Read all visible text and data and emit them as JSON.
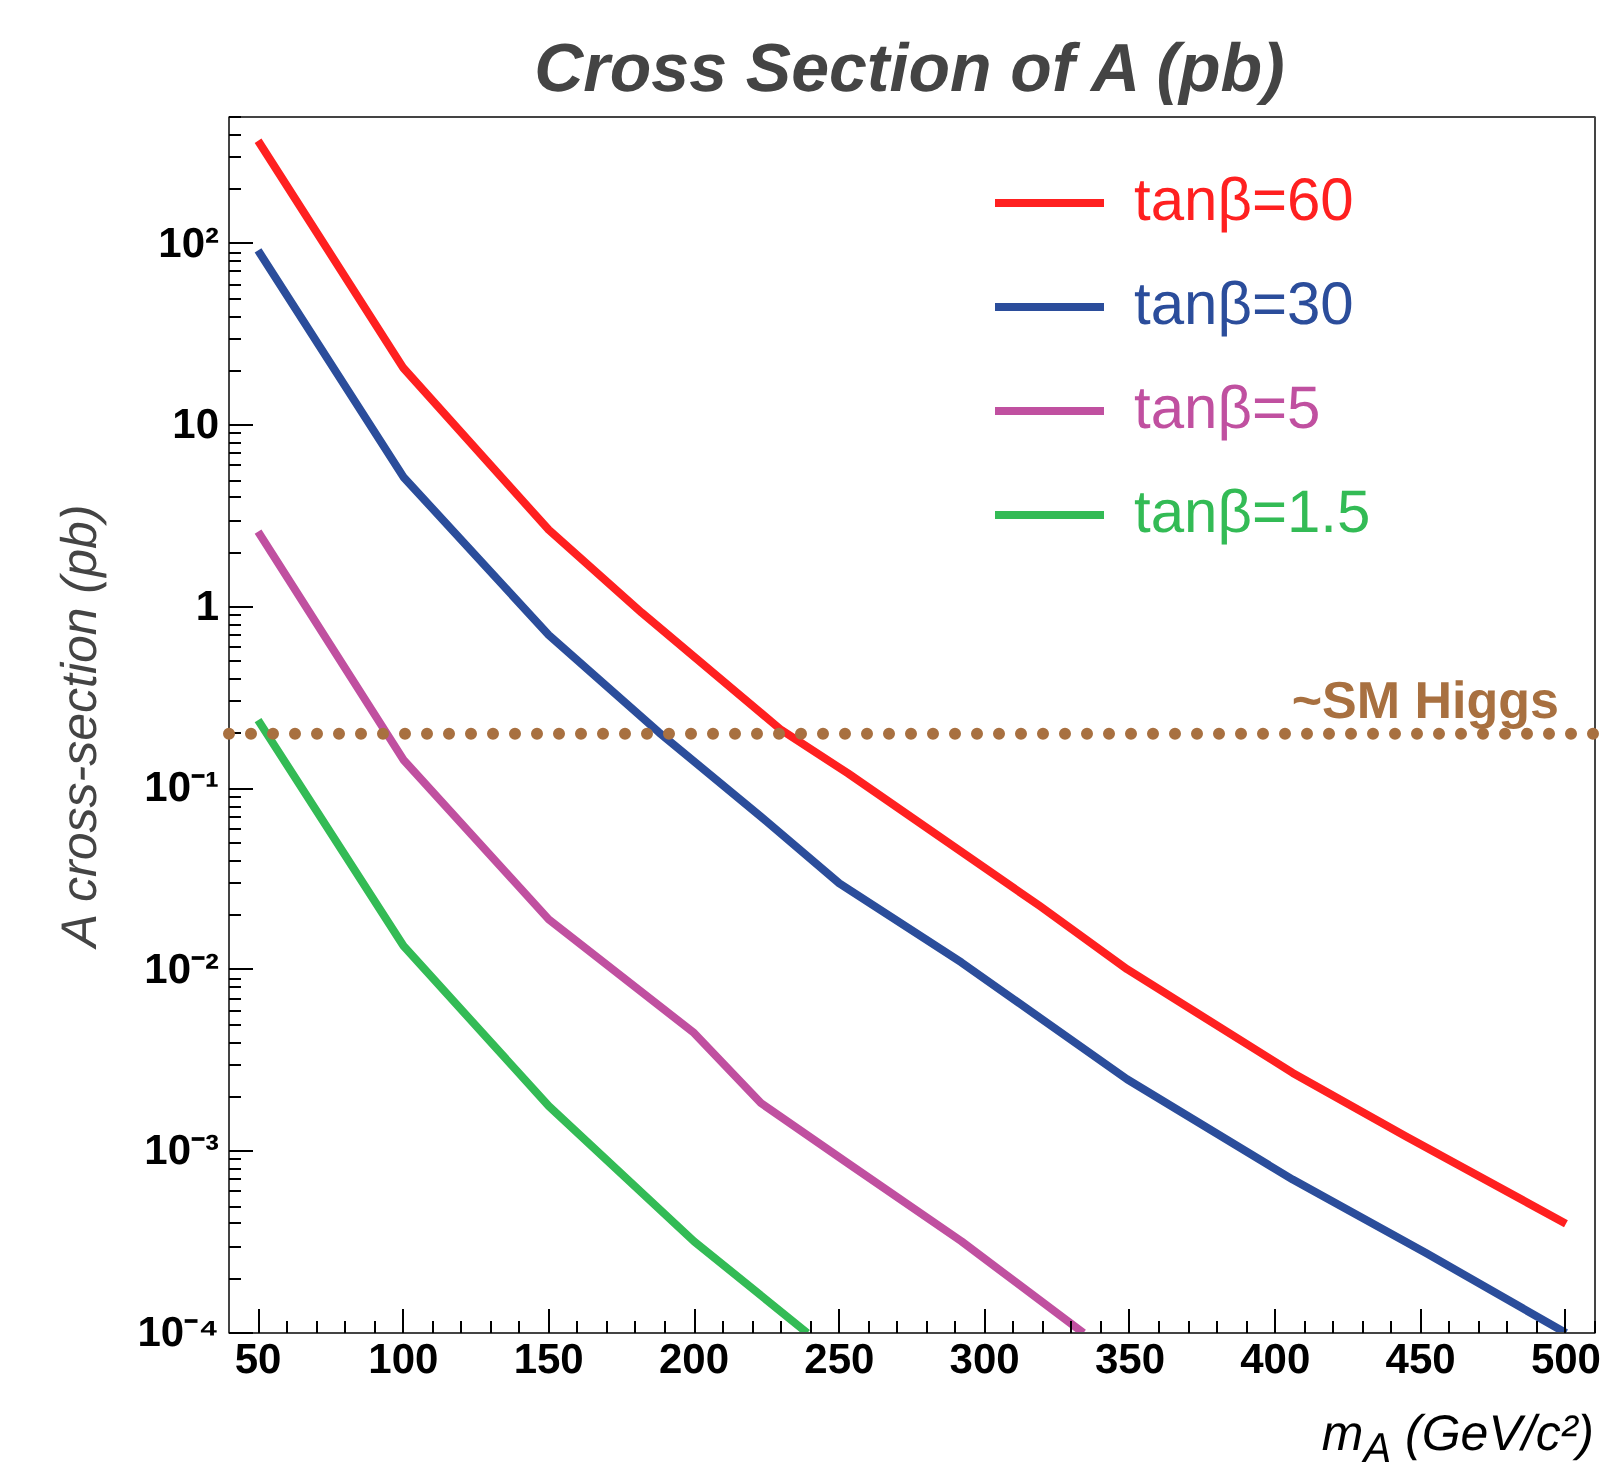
{
  "chart_data": {
    "type": "line",
    "title": "Cross Section of A (pb)",
    "xlabel": "m$_{A}$ (GeV/c²)",
    "ylabel": "A cross-section (pb)",
    "log": "y",
    "xlim": [
      40,
      510
    ],
    "ylim": [
      0.0001,
      500
    ],
    "xticks": [
      50,
      100,
      150,
      200,
      250,
      300,
      350,
      400,
      450,
      500
    ],
    "yticks": [
      {
        "value": 0.0001,
        "label": "10⁻⁴"
      },
      {
        "value": 0.001,
        "label": "10⁻³"
      },
      {
        "value": 0.01,
        "label": "10⁻²"
      },
      {
        "value": 0.1,
        "label": "10⁻¹"
      },
      1,
      10,
      {
        "value": 100,
        "label": "10²"
      }
    ],
    "grid": false,
    "legend": "top right",
    "line_style": "solid",
    "marker": "none",
    "series": [
      {
        "name": "tanβ=60",
        "color": "#ff2020",
        "x": [
          50,
          100,
          150,
          182,
          230,
          253,
          319,
          349,
          406,
          445,
          500
        ],
        "values": [
          370,
          20.7,
          2.66,
          0.93,
          0.21,
          0.121,
          0.0225,
          0.0101,
          0.00271,
          0.00121,
          0.0004
        ]
      },
      {
        "name": "tanβ=30",
        "color": "#2b4d9b",
        "x": [
          50,
          100,
          150,
          188,
          223,
          250,
          292,
          349,
          406,
          452,
          500
        ],
        "values": [
          92,
          5.2,
          0.7,
          0.203,
          0.07,
          0.03,
          0.011,
          0.0025,
          0.0007,
          0.000275,
          0.0001
        ]
      },
      {
        "name": "tanβ=5",
        "color": "#c050a0",
        "x": [
          50,
          100,
          150,
          200,
          223,
          253,
          292,
          334
        ],
        "values": [
          2.6,
          0.144,
          0.019,
          0.0045,
          0.00185,
          0.00086,
          0.00032,
          0.0001
        ]
      },
      {
        "name": "tanβ=1.5",
        "color": "#33bb55",
        "x": [
          50,
          100,
          150,
          200,
          239
        ],
        "values": [
          0.238,
          0.0136,
          0.00178,
          0.00032,
          0.0001
        ]
      }
    ],
    "ref_lines": [
      {
        "axis": "y",
        "value": 0.2,
        "label": "~SM Higgs",
        "color": "#a87040",
        "line_style": "dotted"
      }
    ]
  }
}
